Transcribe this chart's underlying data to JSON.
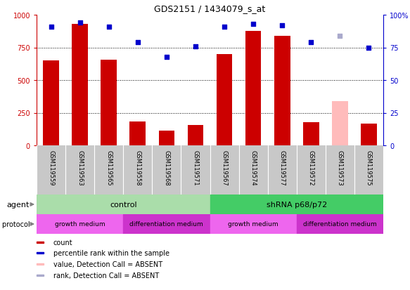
{
  "title": "GDS2151 / 1434079_s_at",
  "samples": [
    "GSM119559",
    "GSM119563",
    "GSM119565",
    "GSM119558",
    "GSM119568",
    "GSM119571",
    "GSM119567",
    "GSM119574",
    "GSM119577",
    "GSM119572",
    "GSM119573",
    "GSM119575"
  ],
  "bar_heights": [
    650,
    930,
    655,
    185,
    115,
    155,
    700,
    875,
    840,
    175,
    340,
    165
  ],
  "bar_colors": [
    "#cc0000",
    "#cc0000",
    "#cc0000",
    "#cc0000",
    "#cc0000",
    "#cc0000",
    "#cc0000",
    "#cc0000",
    "#cc0000",
    "#cc0000",
    "#ffbbbb",
    "#cc0000"
  ],
  "percentile_ranks": [
    91,
    94,
    91,
    79,
    68,
    76,
    91,
    93,
    92,
    79,
    84,
    75
  ],
  "absent_mask": [
    false,
    false,
    false,
    false,
    false,
    false,
    false,
    false,
    false,
    false,
    true,
    false
  ],
  "ylim_left": [
    0,
    1000
  ],
  "ylim_right": [
    0,
    100
  ],
  "yticks_left": [
    0,
    250,
    500,
    750,
    1000
  ],
  "yticks_right": [
    0,
    25,
    50,
    75,
    100
  ],
  "ytick_labels_left": [
    "0",
    "250",
    "500",
    "750",
    "1000"
  ],
  "ytick_labels_right": [
    "0",
    "25",
    "50",
    "75",
    "100%"
  ],
  "left_axis_color": "#cc0000",
  "right_axis_color": "#0000cc",
  "agent_groups": [
    {
      "label": "control",
      "start": 0,
      "end": 6,
      "color": "#aaddaa"
    },
    {
      "label": "shRNA p68/p72",
      "start": 6,
      "end": 12,
      "color": "#44cc66"
    }
  ],
  "growth_groups": [
    {
      "label": "growth medium",
      "start": 0,
      "end": 3,
      "color": "#ee66ee"
    },
    {
      "label": "differentiation medium",
      "start": 3,
      "end": 6,
      "color": "#cc33cc"
    },
    {
      "label": "growth medium",
      "start": 6,
      "end": 9,
      "color": "#ee66ee"
    },
    {
      "label": "differentiation medium",
      "start": 9,
      "end": 12,
      "color": "#cc33cc"
    }
  ],
  "legend_items": [
    {
      "label": "count",
      "color": "#cc0000"
    },
    {
      "label": "percentile rank within the sample",
      "color": "#0000cc"
    },
    {
      "label": "value, Detection Call = ABSENT",
      "color": "#ffbbbb"
    },
    {
      "label": "rank, Detection Call = ABSENT",
      "color": "#aaaacc"
    }
  ],
  "tick_fontsize": 7,
  "bar_width": 0.55
}
